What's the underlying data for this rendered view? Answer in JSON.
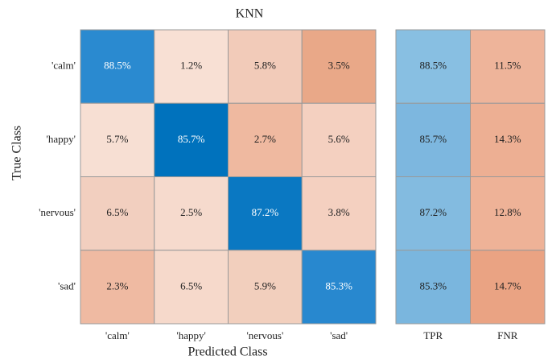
{
  "chart_data": {
    "type": "heatmap",
    "title": "KNN",
    "xlabel": "Predicted Class",
    "ylabel": "True Class",
    "x_categories": [
      "'calm'",
      "'happy'",
      "'nervous'",
      "'sad'"
    ],
    "y_categories": [
      "'calm'",
      "'happy'",
      "'nervous'",
      "'sad'"
    ],
    "values": [
      [
        88.5,
        1.2,
        5.8,
        3.5
      ],
      [
        5.7,
        85.7,
        2.7,
        5.6
      ],
      [
        6.5,
        2.5,
        87.2,
        3.8
      ],
      [
        2.3,
        6.5,
        5.9,
        85.3
      ]
    ],
    "value_labels": [
      [
        "88.5%",
        "1.2%",
        "5.8%",
        "3.5%"
      ],
      [
        "5.7%",
        "85.7%",
        "2.7%",
        "5.6%"
      ],
      [
        "6.5%",
        "2.5%",
        "87.2%",
        "3.8%"
      ],
      [
        "2.3%",
        "6.5%",
        "5.9%",
        "85.3%"
      ]
    ],
    "cell_colors": [
      [
        "#2a8ad0",
        "#f8e0d4",
        "#f2cbb9",
        "#e9a888"
      ],
      [
        "#f7dfd3",
        "#0072bd",
        "#efb9a0",
        "#f4d0c0"
      ],
      [
        "#f2cfbf",
        "#f6dacd",
        "#0a78c2",
        "#f4d0c0"
      ],
      [
        "#efbaa2",
        "#f6d9cb",
        "#f2cfbd",
        "#2888cf"
      ]
    ],
    "summary": {
      "categories": [
        "TPR",
        "FNR"
      ],
      "values": [
        [
          88.5,
          11.5
        ],
        [
          85.7,
          14.3
        ],
        [
          87.2,
          12.8
        ],
        [
          85.3,
          14.7
        ]
      ],
      "value_labels": [
        [
          "88.5%",
          "11.5%"
        ],
        [
          "85.7%",
          "14.3%"
        ],
        [
          "87.2%",
          "12.8%"
        ],
        [
          "85.3%",
          "14.7%"
        ]
      ],
      "cell_colors": [
        [
          "#88bfe2",
          "#eeb49a"
        ],
        [
          "#7db7df",
          "#edaf93"
        ],
        [
          "#83bbe0",
          "#eeb297"
        ],
        [
          "#7ab6de",
          "#eaa383"
        ]
      ]
    }
  }
}
